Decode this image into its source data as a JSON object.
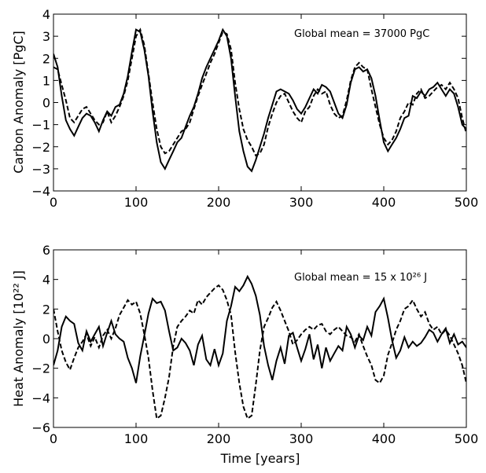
{
  "chart_data": [
    {
      "type": "line",
      "ylabel": "Carbon Anomaly [PgC]",
      "xlabel": "",
      "xlim": [
        0,
        500
      ],
      "ylim": [
        -4,
        4
      ],
      "xticks": [
        0,
        100,
        200,
        300,
        400,
        500
      ],
      "yticks": [
        -4,
        -3,
        -2,
        -1,
        0,
        1,
        2,
        3,
        4
      ],
      "annotation": "Global mean = 37000 PgC",
      "series": [
        {
          "style": "solid",
          "x": [
            0,
            5,
            10,
            15,
            20,
            25,
            30,
            35,
            40,
            45,
            50,
            55,
            60,
            65,
            70,
            75,
            80,
            85,
            90,
            95,
            100,
            105,
            110,
            115,
            120,
            125,
            130,
            135,
            140,
            145,
            150,
            155,
            160,
            165,
            170,
            175,
            180,
            185,
            190,
            195,
            200,
            205,
            210,
            215,
            220,
            225,
            230,
            235,
            240,
            245,
            250,
            255,
            260,
            265,
            270,
            275,
            280,
            285,
            290,
            295,
            300,
            305,
            310,
            315,
            320,
            325,
            330,
            335,
            340,
            345,
            350,
            355,
            360,
            365,
            370,
            375,
            380,
            385,
            390,
            395,
            400,
            405,
            410,
            415,
            420,
            425,
            430,
            435,
            440,
            445,
            450,
            455,
            460,
            465,
            470,
            475,
            480,
            485,
            490,
            495,
            500
          ],
          "y": [
            2.2,
            1.6,
            0.3,
            -0.8,
            -1.2,
            -1.5,
            -1.1,
            -0.7,
            -0.5,
            -0.6,
            -0.9,
            -1.3,
            -0.8,
            -0.4,
            -0.6,
            -0.2,
            -0.1,
            0.4,
            1.2,
            2.3,
            3.3,
            3.2,
            2.4,
            1.2,
            -0.4,
            -1.8,
            -2.7,
            -3.0,
            -2.6,
            -2.2,
            -1.8,
            -1.6,
            -1.1,
            -0.6,
            -0.2,
            0.4,
            1.1,
            1.6,
            2.0,
            2.4,
            2.8,
            3.3,
            3.0,
            2.0,
            0.3,
            -1.3,
            -2.2,
            -2.9,
            -3.1,
            -2.6,
            -2.0,
            -1.4,
            -0.7,
            -0.1,
            0.5,
            0.6,
            0.5,
            0.4,
            0.1,
            -0.3,
            -0.5,
            -0.2,
            0.2,
            0.6,
            0.4,
            0.8,
            0.7,
            0.5,
            0.0,
            -0.5,
            -0.7,
            -0.1,
            0.9,
            1.5,
            1.6,
            1.4,
            1.5,
            1.1,
            0.3,
            -0.8,
            -1.8,
            -2.2,
            -1.9,
            -1.6,
            -1.2,
            -0.7,
            -0.6,
            0.3,
            0.2,
            0.5,
            0.3,
            0.6,
            0.7,
            0.9,
            0.6,
            0.3,
            0.6,
            0.4,
            -0.2,
            -1.0,
            -1.2
          ]
        },
        {
          "style": "dashed",
          "x": [
            0,
            5,
            10,
            15,
            20,
            25,
            30,
            35,
            40,
            45,
            50,
            55,
            60,
            65,
            70,
            75,
            80,
            85,
            90,
            95,
            100,
            105,
            110,
            115,
            120,
            125,
            130,
            135,
            140,
            145,
            150,
            155,
            160,
            165,
            170,
            175,
            180,
            185,
            190,
            195,
            200,
            205,
            210,
            215,
            220,
            225,
            230,
            235,
            240,
            245,
            250,
            255,
            260,
            265,
            270,
            275,
            280,
            285,
            290,
            295,
            300,
            305,
            310,
            315,
            320,
            325,
            330,
            335,
            340,
            345,
            350,
            355,
            360,
            365,
            370,
            375,
            380,
            385,
            390,
            395,
            400,
            405,
            410,
            415,
            420,
            425,
            430,
            435,
            440,
            445,
            450,
            455,
            460,
            465,
            470,
            475,
            480,
            485,
            490,
            495,
            500
          ],
          "y": [
            1.6,
            1.5,
            0.8,
            0.1,
            -0.7,
            -0.9,
            -0.6,
            -0.3,
            -0.2,
            -0.5,
            -0.8,
            -1.0,
            -0.9,
            -0.4,
            -0.9,
            -0.6,
            -0.2,
            0.3,
            1.0,
            2.0,
            3.0,
            3.3,
            2.6,
            1.3,
            0.0,
            -1.2,
            -2.0,
            -2.3,
            -2.2,
            -1.9,
            -1.6,
            -1.3,
            -1.2,
            -0.9,
            -0.3,
            0.3,
            0.8,
            1.3,
            1.8,
            2.2,
            2.7,
            3.2,
            3.1,
            2.4,
            0.9,
            -0.3,
            -1.2,
            -1.7,
            -2.0,
            -2.4,
            -2.3,
            -1.9,
            -1.1,
            -0.5,
            0.0,
            0.3,
            0.4,
            0.0,
            -0.4,
            -0.7,
            -0.9,
            -0.4,
            -0.2,
            0.3,
            0.6,
            0.4,
            0.5,
            -0.1,
            -0.5,
            -0.7,
            -0.6,
            0.1,
            1.0,
            1.6,
            1.8,
            1.6,
            1.5,
            0.6,
            -0.2,
            -1.0,
            -1.6,
            -1.9,
            -1.7,
            -1.3,
            -0.7,
            -0.4,
            0.0,
            -0.1,
            0.4,
            0.6,
            0.2,
            0.3,
            0.5,
            0.7,
            0.8,
            0.6,
            0.9,
            0.6,
            0.2,
            -0.7,
            -1.4
          ]
        }
      ]
    },
    {
      "type": "line",
      "ylabel": "Heat Anomaly [10²² J]",
      "xlabel": "Time [years]",
      "xlim": [
        0,
        500
      ],
      "ylim": [
        -6,
        6
      ],
      "xticks": [
        0,
        100,
        200,
        300,
        400,
        500
      ],
      "yticks": [
        -6,
        -4,
        -2,
        0,
        2,
        4,
        6
      ],
      "annotation": "Global mean = 15 x 10²⁶ J",
      "series": [
        {
          "style": "solid",
          "x": [
            0,
            5,
            10,
            15,
            20,
            25,
            30,
            35,
            40,
            45,
            50,
            55,
            60,
            65,
            70,
            75,
            80,
            85,
            90,
            95,
            100,
            105,
            110,
            115,
            120,
            125,
            130,
            135,
            140,
            145,
            150,
            155,
            160,
            165,
            170,
            175,
            180,
            185,
            190,
            195,
            200,
            205,
            210,
            215,
            220,
            225,
            230,
            235,
            240,
            245,
            250,
            255,
            260,
            265,
            270,
            275,
            280,
            285,
            290,
            295,
            300,
            305,
            310,
            315,
            320,
            325,
            330,
            335,
            340,
            345,
            350,
            355,
            360,
            365,
            370,
            375,
            380,
            385,
            390,
            395,
            400,
            405,
            410,
            415,
            420,
            425,
            430,
            435,
            440,
            445,
            450,
            455,
            460,
            465,
            470,
            475,
            480,
            485,
            490,
            495,
            500
          ],
          "y": [
            -1.8,
            -0.8,
            0.8,
            1.5,
            1.2,
            1.0,
            -0.3,
            -0.8,
            0.5,
            -0.2,
            0.3,
            0.8,
            -0.5,
            0.4,
            1.2,
            0.3,
            0.0,
            -0.2,
            -1.3,
            -2.0,
            -3.0,
            -1.2,
            0.2,
            1.7,
            2.7,
            2.4,
            2.5,
            1.9,
            0.5,
            -0.8,
            -0.6,
            0.0,
            -0.3,
            -0.8,
            -1.8,
            -0.4,
            0.2,
            -1.4,
            -1.8,
            -0.7,
            -1.8,
            -1.0,
            1.2,
            2.2,
            3.5,
            3.2,
            3.6,
            4.2,
            3.7,
            2.9,
            1.6,
            -0.5,
            -1.8,
            -2.8,
            -1.5,
            -0.6,
            -1.7,
            0.2,
            0.4,
            -0.6,
            -1.5,
            -0.7,
            0.3,
            -1.4,
            -0.4,
            -2.0,
            -0.6,
            -1.5,
            -1.0,
            -0.5,
            -0.8,
            0.8,
            0.3,
            -0.6,
            0.2,
            -0.1,
            0.8,
            0.2,
            1.8,
            2.2,
            2.7,
            1.4,
            -0.1,
            -1.3,
            -0.8,
            0.1,
            -0.6,
            -0.2,
            -0.5,
            -0.3,
            0.1,
            0.6,
            0.4,
            -0.2,
            0.3,
            0.7,
            -0.3,
            0.3,
            -0.4,
            -0.2,
            -0.6
          ]
        },
        {
          "style": "dashed",
          "x": [
            0,
            5,
            10,
            15,
            20,
            25,
            30,
            35,
            40,
            45,
            50,
            55,
            60,
            65,
            70,
            75,
            80,
            85,
            90,
            95,
            100,
            105,
            110,
            115,
            120,
            125,
            130,
            135,
            140,
            145,
            150,
            155,
            160,
            165,
            170,
            175,
            180,
            185,
            190,
            195,
            200,
            205,
            210,
            215,
            220,
            225,
            230,
            235,
            240,
            245,
            250,
            255,
            260,
            265,
            270,
            275,
            280,
            285,
            290,
            295,
            300,
            305,
            310,
            315,
            320,
            325,
            330,
            335,
            340,
            345,
            350,
            355,
            360,
            365,
            370,
            375,
            380,
            385,
            390,
            395,
            400,
            405,
            410,
            415,
            420,
            425,
            430,
            435,
            440,
            445,
            450,
            455,
            460,
            465,
            470,
            475,
            480,
            485,
            490,
            495,
            500
          ],
          "y": [
            2.0,
            0.5,
            -0.8,
            -1.6,
            -2.1,
            -1.3,
            -0.6,
            -0.2,
            0.3,
            -0.5,
            0.1,
            -0.6,
            0.2,
            0.6,
            0.0,
            0.7,
            1.6,
            2.1,
            2.6,
            2.3,
            2.5,
            1.7,
            0.3,
            -1.3,
            -3.5,
            -5.4,
            -5.2,
            -4.0,
            -2.6,
            -0.5,
            0.8,
            1.2,
            1.5,
            1.9,
            1.7,
            2.6,
            2.3,
            2.8,
            3.1,
            3.4,
            3.6,
            3.3,
            2.6,
            1.6,
            -0.9,
            -3.0,
            -4.6,
            -5.4,
            -5.2,
            -3.1,
            -0.8,
            0.8,
            1.4,
            2.1,
            2.5,
            1.9,
            1.2,
            0.5,
            -0.4,
            -0.1,
            0.3,
            0.6,
            0.8,
            0.6,
            0.9,
            1.0,
            0.5,
            0.3,
            0.6,
            0.8,
            0.5,
            0.2,
            0.1,
            -0.2,
            0.3,
            -0.5,
            -1.2,
            -1.8,
            -2.8,
            -3.0,
            -2.5,
            -1.1,
            -0.3,
            0.6,
            1.2,
            2.0,
            2.2,
            2.6,
            2.0,
            1.5,
            1.8,
            1.0,
            0.6,
            0.8,
            0.3,
            0.6,
            0.2,
            -0.4,
            -1.0,
            -1.8,
            -3.0
          ]
        }
      ]
    }
  ]
}
